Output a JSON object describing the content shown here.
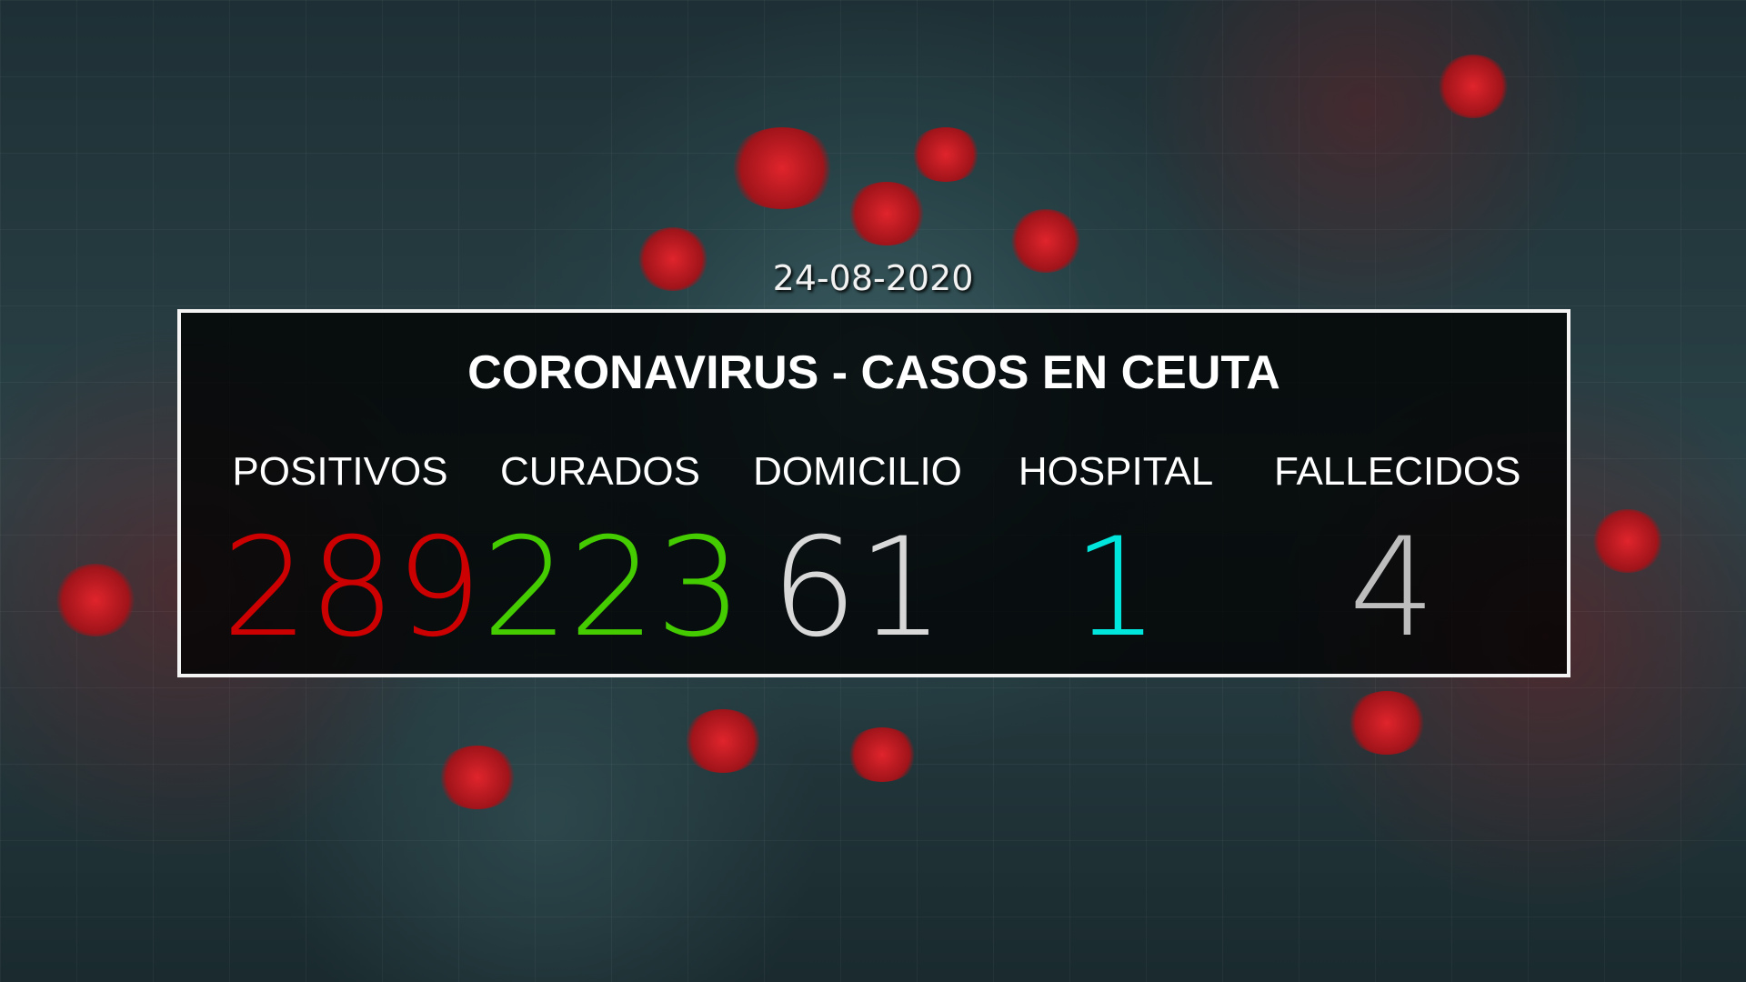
{
  "date": "24-08-2020",
  "title": "CORONAVIRUS - CASOS EN CEUTA",
  "stats": [
    {
      "label": "POSITIVOS",
      "value": "289",
      "color": "#cc0000"
    },
    {
      "label": "CURADOS",
      "value": "223",
      "color": "#44cc00"
    },
    {
      "label": "DOMICILIO",
      "value": "61",
      "color": "#d8d8d8"
    },
    {
      "label": "HOSPITAL",
      "value": "1",
      "color": "#00e5dc"
    },
    {
      "label": "FALLECIDOS",
      "value": "4",
      "color": "#bdbdbd"
    }
  ]
}
